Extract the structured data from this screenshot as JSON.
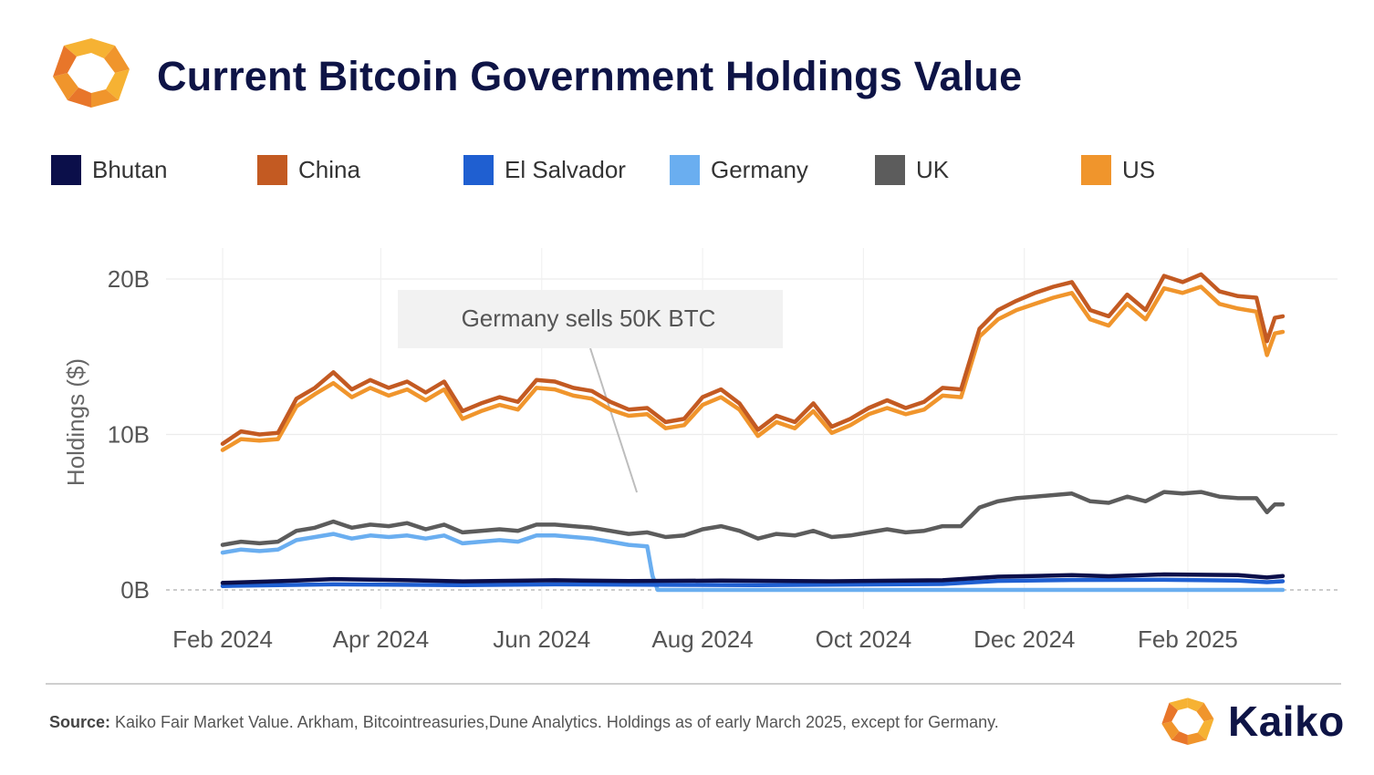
{
  "header": {
    "title": "Current Bitcoin Government Holdings Value"
  },
  "legend": [
    {
      "label": "Bhutan",
      "color": "#0b0f4a"
    },
    {
      "label": "China",
      "color": "#c35a22"
    },
    {
      "label": "El Salvador",
      "color": "#1f5fd1"
    },
    {
      "label": "Germany",
      "color": "#6aaef0"
    },
    {
      "label": "UK",
      "color": "#5c5c5c"
    },
    {
      "label": "US",
      "color": "#f0952c"
    }
  ],
  "annotation": {
    "text": "Germany sells 50K BTC"
  },
  "footer": {
    "source_label": "Source:",
    "source_text": " Kaiko Fair Market Value. Arkham, Bitcointreasuries,Dune Analytics. Holdings as of early March 2025, except for Germany."
  },
  "brand": {
    "name": "Kaiko",
    "logo_colors": [
      "#f0952c",
      "#e8762a",
      "#f6b233"
    ]
  },
  "chart_data": {
    "type": "line",
    "title": "Current Bitcoin Government Holdings Value",
    "ylabel": "Holdings ($)",
    "xlabel": "",
    "ylim": [
      -1.5,
      22
    ],
    "yticks": [
      0,
      10,
      20
    ],
    "ytick_labels": [
      "0B",
      "10B",
      "20B"
    ],
    "xlim": [
      "2024-02-01",
      "2025-03-09"
    ],
    "xticks": [
      "2024-02-01",
      "2024-04-01",
      "2024-06-01",
      "2024-08-01",
      "2024-10-01",
      "2024-12-01",
      "2025-02-01"
    ],
    "xtick_labels": [
      "Feb 2024",
      "Apr 2024",
      "Jun 2024",
      "Aug 2024",
      "Oct 2024",
      "Dec 2024",
      "Feb 2025"
    ],
    "grid": true,
    "legend_position": "top",
    "series": [
      {
        "name": "China",
        "color": "#c35a22",
        "points": [
          [
            "2024-02-01",
            9.4
          ],
          [
            "2024-02-08",
            10.2
          ],
          [
            "2024-02-15",
            10.0
          ],
          [
            "2024-02-22",
            10.1
          ],
          [
            "2024-02-29",
            12.3
          ],
          [
            "2024-03-07",
            13.0
          ],
          [
            "2024-03-14",
            14.0
          ],
          [
            "2024-03-21",
            12.9
          ],
          [
            "2024-03-28",
            13.5
          ],
          [
            "2024-04-04",
            13.0
          ],
          [
            "2024-04-11",
            13.4
          ],
          [
            "2024-04-18",
            12.7
          ],
          [
            "2024-04-25",
            13.4
          ],
          [
            "2024-05-02",
            11.5
          ],
          [
            "2024-05-09",
            12.0
          ],
          [
            "2024-05-16",
            12.4
          ],
          [
            "2024-05-23",
            12.1
          ],
          [
            "2024-05-30",
            13.5
          ],
          [
            "2024-06-06",
            13.4
          ],
          [
            "2024-06-13",
            13.0
          ],
          [
            "2024-06-20",
            12.8
          ],
          [
            "2024-06-27",
            12.1
          ],
          [
            "2024-07-04",
            11.6
          ],
          [
            "2024-07-11",
            11.7
          ],
          [
            "2024-07-18",
            10.8
          ],
          [
            "2024-07-25",
            11.0
          ],
          [
            "2024-08-01",
            12.4
          ],
          [
            "2024-08-08",
            12.9
          ],
          [
            "2024-08-15",
            12.0
          ],
          [
            "2024-08-22",
            10.3
          ],
          [
            "2024-08-29",
            11.2
          ],
          [
            "2024-09-05",
            10.8
          ],
          [
            "2024-09-12",
            12.0
          ],
          [
            "2024-09-19",
            10.5
          ],
          [
            "2024-09-26",
            11.0
          ],
          [
            "2024-10-03",
            11.7
          ],
          [
            "2024-10-10",
            12.2
          ],
          [
            "2024-10-17",
            11.7
          ],
          [
            "2024-10-24",
            12.1
          ],
          [
            "2024-10-31",
            13.0
          ],
          [
            "2024-11-07",
            12.9
          ],
          [
            "2024-11-14",
            16.8
          ],
          [
            "2024-11-21",
            18.0
          ],
          [
            "2024-11-28",
            18.6
          ],
          [
            "2024-12-05",
            19.1
          ],
          [
            "2024-12-12",
            19.5
          ],
          [
            "2024-12-19",
            19.8
          ],
          [
            "2024-12-26",
            18.0
          ],
          [
            "2025-01-02",
            17.6
          ],
          [
            "2025-01-09",
            19.0
          ],
          [
            "2025-01-16",
            18.0
          ],
          [
            "2025-01-23",
            20.2
          ],
          [
            "2025-01-30",
            19.8
          ],
          [
            "2025-02-06",
            20.3
          ],
          [
            "2025-02-13",
            19.2
          ],
          [
            "2025-02-20",
            18.9
          ],
          [
            "2025-02-27",
            18.8
          ],
          [
            "2025-03-03",
            16.0
          ],
          [
            "2025-03-06",
            17.5
          ],
          [
            "2025-03-09",
            17.6
          ]
        ]
      },
      {
        "name": "US",
        "color": "#f0952c",
        "points": [
          [
            "2024-02-01",
            9.0
          ],
          [
            "2024-02-08",
            9.7
          ],
          [
            "2024-02-15",
            9.6
          ],
          [
            "2024-02-22",
            9.7
          ],
          [
            "2024-02-29",
            11.8
          ],
          [
            "2024-03-07",
            12.6
          ],
          [
            "2024-03-14",
            13.3
          ],
          [
            "2024-03-21",
            12.4
          ],
          [
            "2024-03-28",
            13.0
          ],
          [
            "2024-04-04",
            12.5
          ],
          [
            "2024-04-11",
            12.9
          ],
          [
            "2024-04-18",
            12.2
          ],
          [
            "2024-04-25",
            12.9
          ],
          [
            "2024-05-02",
            11.0
          ],
          [
            "2024-05-09",
            11.5
          ],
          [
            "2024-05-16",
            11.9
          ],
          [
            "2024-05-23",
            11.6
          ],
          [
            "2024-05-30",
            13.0
          ],
          [
            "2024-06-06",
            12.9
          ],
          [
            "2024-06-13",
            12.5
          ],
          [
            "2024-06-20",
            12.3
          ],
          [
            "2024-06-27",
            11.6
          ],
          [
            "2024-07-04",
            11.2
          ],
          [
            "2024-07-11",
            11.3
          ],
          [
            "2024-07-18",
            10.4
          ],
          [
            "2024-07-25",
            10.6
          ],
          [
            "2024-08-01",
            11.9
          ],
          [
            "2024-08-08",
            12.4
          ],
          [
            "2024-08-15",
            11.6
          ],
          [
            "2024-08-22",
            9.9
          ],
          [
            "2024-08-29",
            10.8
          ],
          [
            "2024-09-05",
            10.4
          ],
          [
            "2024-09-12",
            11.5
          ],
          [
            "2024-09-19",
            10.1
          ],
          [
            "2024-09-26",
            10.6
          ],
          [
            "2024-10-03",
            11.3
          ],
          [
            "2024-10-10",
            11.7
          ],
          [
            "2024-10-17",
            11.3
          ],
          [
            "2024-10-24",
            11.6
          ],
          [
            "2024-10-31",
            12.5
          ],
          [
            "2024-11-07",
            12.4
          ],
          [
            "2024-11-14",
            16.3
          ],
          [
            "2024-11-21",
            17.4
          ],
          [
            "2024-11-28",
            18.0
          ],
          [
            "2024-12-05",
            18.4
          ],
          [
            "2024-12-12",
            18.8
          ],
          [
            "2024-12-19",
            19.1
          ],
          [
            "2024-12-26",
            17.4
          ],
          [
            "2025-01-02",
            17.0
          ],
          [
            "2025-01-09",
            18.4
          ],
          [
            "2025-01-16",
            17.4
          ],
          [
            "2025-01-23",
            19.4
          ],
          [
            "2025-01-30",
            19.1
          ],
          [
            "2025-02-06",
            19.5
          ],
          [
            "2025-02-13",
            18.4
          ],
          [
            "2025-02-20",
            18.1
          ],
          [
            "2025-02-27",
            17.9
          ],
          [
            "2025-03-03",
            15.1
          ],
          [
            "2025-03-06",
            16.5
          ],
          [
            "2025-03-09",
            16.6
          ]
        ]
      },
      {
        "name": "UK",
        "color": "#5c5c5c",
        "points": [
          [
            "2024-02-01",
            2.9
          ],
          [
            "2024-02-08",
            3.1
          ],
          [
            "2024-02-15",
            3.0
          ],
          [
            "2024-02-22",
            3.1
          ],
          [
            "2024-02-29",
            3.8
          ],
          [
            "2024-03-07",
            4.0
          ],
          [
            "2024-03-14",
            4.4
          ],
          [
            "2024-03-21",
            4.0
          ],
          [
            "2024-03-28",
            4.2
          ],
          [
            "2024-04-04",
            4.1
          ],
          [
            "2024-04-11",
            4.3
          ],
          [
            "2024-04-18",
            3.9
          ],
          [
            "2024-04-25",
            4.2
          ],
          [
            "2024-05-02",
            3.7
          ],
          [
            "2024-05-09",
            3.8
          ],
          [
            "2024-05-16",
            3.9
          ],
          [
            "2024-05-23",
            3.8
          ],
          [
            "2024-05-30",
            4.2
          ],
          [
            "2024-06-06",
            4.2
          ],
          [
            "2024-06-13",
            4.1
          ],
          [
            "2024-06-20",
            4.0
          ],
          [
            "2024-06-27",
            3.8
          ],
          [
            "2024-07-04",
            3.6
          ],
          [
            "2024-07-11",
            3.7
          ],
          [
            "2024-07-18",
            3.4
          ],
          [
            "2024-07-25",
            3.5
          ],
          [
            "2024-08-01",
            3.9
          ],
          [
            "2024-08-08",
            4.1
          ],
          [
            "2024-08-15",
            3.8
          ],
          [
            "2024-08-22",
            3.3
          ],
          [
            "2024-08-29",
            3.6
          ],
          [
            "2024-09-05",
            3.5
          ],
          [
            "2024-09-12",
            3.8
          ],
          [
            "2024-09-19",
            3.4
          ],
          [
            "2024-09-26",
            3.5
          ],
          [
            "2024-10-03",
            3.7
          ],
          [
            "2024-10-10",
            3.9
          ],
          [
            "2024-10-17",
            3.7
          ],
          [
            "2024-10-24",
            3.8
          ],
          [
            "2024-10-31",
            4.1
          ],
          [
            "2024-11-07",
            4.1
          ],
          [
            "2024-11-14",
            5.3
          ],
          [
            "2024-11-21",
            5.7
          ],
          [
            "2024-11-28",
            5.9
          ],
          [
            "2024-12-05",
            6.0
          ],
          [
            "2024-12-12",
            6.1
          ],
          [
            "2024-12-19",
            6.2
          ],
          [
            "2024-12-26",
            5.7
          ],
          [
            "2025-01-02",
            5.6
          ],
          [
            "2025-01-09",
            6.0
          ],
          [
            "2025-01-16",
            5.7
          ],
          [
            "2025-01-23",
            6.3
          ],
          [
            "2025-01-30",
            6.2
          ],
          [
            "2025-02-06",
            6.3
          ],
          [
            "2025-02-13",
            6.0
          ],
          [
            "2025-02-20",
            5.9
          ],
          [
            "2025-02-27",
            5.9
          ],
          [
            "2025-03-03",
            5.0
          ],
          [
            "2025-03-06",
            5.5
          ],
          [
            "2025-03-09",
            5.5
          ]
        ]
      },
      {
        "name": "Germany",
        "color": "#6aaef0",
        "points": [
          [
            "2024-02-01",
            2.4
          ],
          [
            "2024-02-08",
            2.6
          ],
          [
            "2024-02-15",
            2.5
          ],
          [
            "2024-02-22",
            2.6
          ],
          [
            "2024-02-29",
            3.2
          ],
          [
            "2024-03-07",
            3.4
          ],
          [
            "2024-03-14",
            3.6
          ],
          [
            "2024-03-21",
            3.3
          ],
          [
            "2024-03-28",
            3.5
          ],
          [
            "2024-04-04",
            3.4
          ],
          [
            "2024-04-11",
            3.5
          ],
          [
            "2024-04-18",
            3.3
          ],
          [
            "2024-04-25",
            3.5
          ],
          [
            "2024-05-02",
            3.0
          ],
          [
            "2024-05-09",
            3.1
          ],
          [
            "2024-05-16",
            3.2
          ],
          [
            "2024-05-23",
            3.1
          ],
          [
            "2024-05-30",
            3.5
          ],
          [
            "2024-06-06",
            3.5
          ],
          [
            "2024-06-13",
            3.4
          ],
          [
            "2024-06-20",
            3.3
          ],
          [
            "2024-06-27",
            3.1
          ],
          [
            "2024-07-04",
            2.9
          ],
          [
            "2024-07-11",
            2.8
          ],
          [
            "2024-07-13",
            0.9
          ],
          [
            "2024-07-15",
            0.0
          ],
          [
            "2024-08-01",
            0.0
          ],
          [
            "2024-10-01",
            0.0
          ],
          [
            "2024-12-01",
            0.0
          ],
          [
            "2025-02-01",
            0.0
          ],
          [
            "2025-03-09",
            0.0
          ]
        ]
      },
      {
        "name": "El Salvador",
        "color": "#1f5fd1",
        "points": [
          [
            "2024-02-01",
            0.25
          ],
          [
            "2024-03-14",
            0.36
          ],
          [
            "2024-05-02",
            0.31
          ],
          [
            "2024-06-06",
            0.36
          ],
          [
            "2024-07-25",
            0.32
          ],
          [
            "2024-08-22",
            0.31
          ],
          [
            "2024-10-31",
            0.38
          ],
          [
            "2024-11-21",
            0.58
          ],
          [
            "2024-12-19",
            0.64
          ],
          [
            "2025-01-23",
            0.65
          ],
          [
            "2025-02-20",
            0.6
          ],
          [
            "2025-03-03",
            0.5
          ],
          [
            "2025-03-09",
            0.56
          ]
        ]
      },
      {
        "name": "Bhutan",
        "color": "#0b0f4a",
        "points": [
          [
            "2024-02-01",
            0.45
          ],
          [
            "2024-02-29",
            0.6
          ],
          [
            "2024-03-14",
            0.7
          ],
          [
            "2024-04-11",
            0.62
          ],
          [
            "2024-05-02",
            0.55
          ],
          [
            "2024-06-06",
            0.62
          ],
          [
            "2024-07-04",
            0.57
          ],
          [
            "2024-08-08",
            0.6
          ],
          [
            "2024-09-19",
            0.56
          ],
          [
            "2024-10-31",
            0.62
          ],
          [
            "2024-11-21",
            0.85
          ],
          [
            "2024-12-19",
            0.95
          ],
          [
            "2025-01-02",
            0.88
          ],
          [
            "2025-01-23",
            1.0
          ],
          [
            "2025-02-20",
            0.95
          ],
          [
            "2025-03-03",
            0.8
          ],
          [
            "2025-03-09",
            0.9
          ]
        ]
      }
    ],
    "annotation": {
      "text": "Germany sells 50K BTC",
      "date": "2024-07-14"
    }
  }
}
